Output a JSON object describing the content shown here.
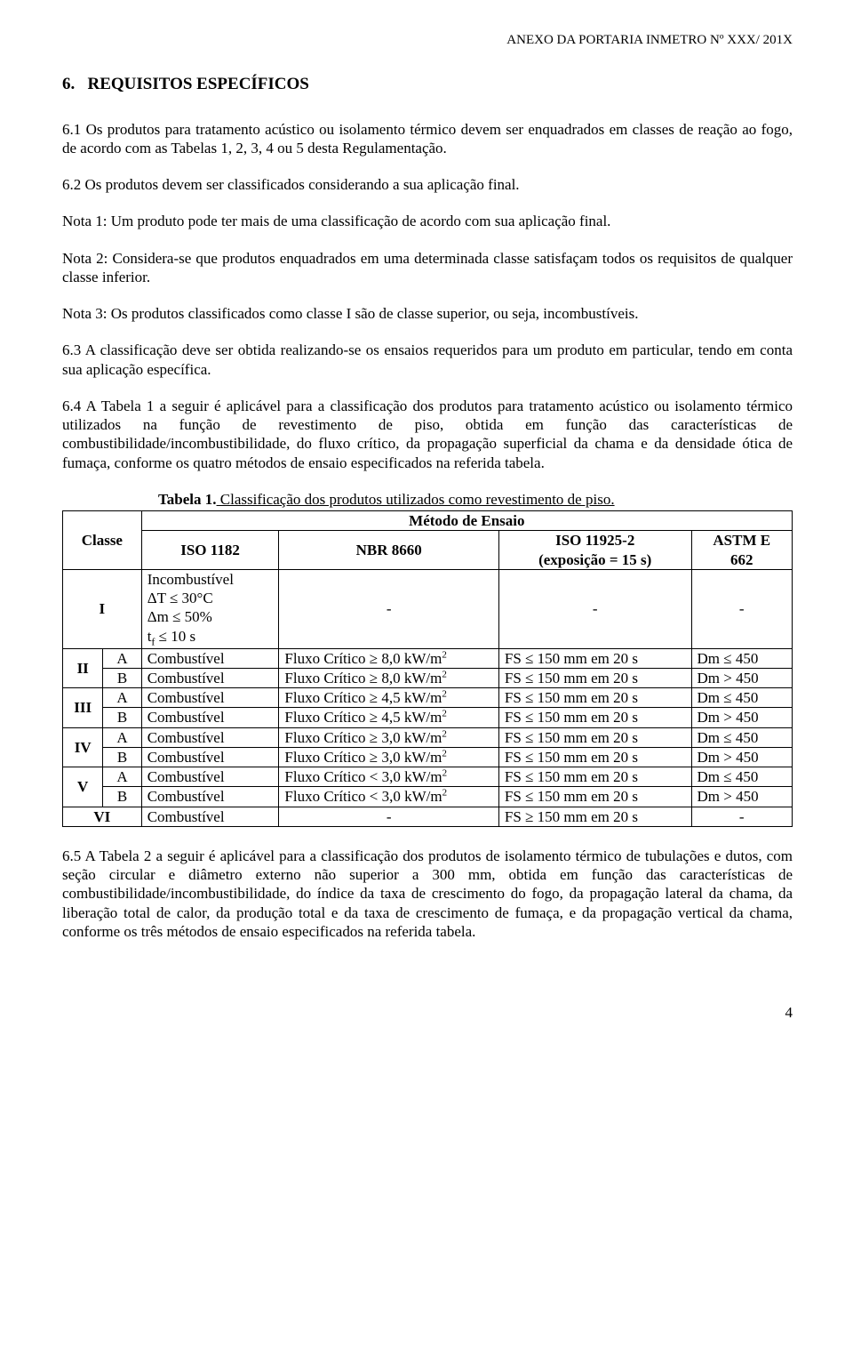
{
  "document": {
    "header": "ANEXO DA PORTARIA INMETRO Nº XXX/ 201X",
    "section_number": "6.",
    "section_title": "REQUISITOS ESPECÍFICOS",
    "paragraphs": {
      "p61": "6.1 Os produtos para tratamento acústico ou isolamento térmico devem ser enquadrados em classes de reação ao fogo, de acordo com as Tabelas 1, 2, 3, 4 ou 5 desta Regulamentação.",
      "p62": "6.2 Os produtos devem ser classificados considerando a sua aplicação final.",
      "nota1": "Nota 1: Um produto pode ter mais de uma classificação de acordo com sua aplicação final.",
      "nota2": "Nota 2: Considera-se que produtos enquadrados em uma determinada classe satisfaçam todos os requisitos de qualquer classe inferior.",
      "nota3": "Nota 3: Os produtos classificados como classe I são de classe superior, ou seja, incombustíveis.",
      "p63": "6.3 A classificação deve ser obtida realizando-se os ensaios requeridos para um produto em particular, tendo em conta sua aplicação específica.",
      "p64": "6.4 A Tabela 1 a seguir é aplicável para a classificação dos produtos para tratamento acústico ou isolamento térmico utilizados na função de revestimento de piso, obtida em função das características de combustibilidade/incombustibilidade, do fluxo crítico, da propagação superficial da chama e da densidade ótica de fumaça, conforme os quatro métodos de ensaio especificados na referida tabela.",
      "p65": "6.5 A Tabela 2 a seguir é aplicável para a classificação dos produtos de isolamento térmico de tubulações e dutos, com seção circular e diâmetro externo não superior a 300 mm, obtida em função das características de combustibilidade/incombustibilidade, do índice da taxa de crescimento do fogo, da propagação lateral da chama, da liberação total de calor, da produção total e da taxa de crescimento de fumaça, e da propagação vertical da chama, conforme os três métodos de ensaio especificados na referida tabela."
    },
    "table1": {
      "caption_bold": "Tabela 1.",
      "caption_rest": " Classificação dos produtos utilizados como revestimento de piso.",
      "header_method": "Método de Ensaio",
      "header_classe": "Classe",
      "cols": {
        "iso1182": "ISO 1182",
        "nbr8660": "NBR 8660",
        "iso11925_line1": "ISO 11925-2",
        "iso11925_line2": "(exposição = 15 s)",
        "astm_line1": "ASTM E",
        "astm_line2": "662"
      },
      "rowI": {
        "classe": "I",
        "iso_line1": "Incombustível",
        "iso_line2": "ΔT ≤ 30°C",
        "iso_line3": "Δm ≤ 50%",
        "iso_line4_pre": "t",
        "iso_line4_sub": "f",
        "iso_line4_rest": " ≤ 10 s",
        "nbr": "-",
        "iso2": "-",
        "astm": "-"
      },
      "rows": [
        {
          "grp": "II",
          "sub": "A",
          "iso": "Combustível",
          "nbr": "Fluxo Crítico ≥ 8,0 kW/m",
          "fs": "FS ≤ 150 mm em 20 s",
          "dm": "Dm ≤ 450"
        },
        {
          "grp": "II",
          "sub": "B",
          "iso": "Combustível",
          "nbr": "Fluxo Crítico ≥ 8,0 kW/m",
          "fs": "FS ≤ 150 mm em 20 s",
          "dm": "Dm > 450"
        },
        {
          "grp": "III",
          "sub": "A",
          "iso": "Combustível",
          "nbr": "Fluxo Crítico ≥ 4,5 kW/m",
          "fs": "FS ≤ 150 mm em 20 s",
          "dm": "Dm ≤ 450"
        },
        {
          "grp": "III",
          "sub": "B",
          "iso": "Combustível",
          "nbr": "Fluxo Crítico ≥ 4,5 kW/m",
          "fs": "FS ≤ 150 mm em 20 s",
          "dm": "Dm > 450"
        },
        {
          "grp": "IV",
          "sub": "A",
          "iso": "Combustível",
          "nbr": "Fluxo Crítico ≥ 3,0 kW/m",
          "fs": "FS ≤ 150 mm em 20 s",
          "dm": "Dm ≤ 450"
        },
        {
          "grp": "IV",
          "sub": "B",
          "iso": "Combustível",
          "nbr": "Fluxo Crítico ≥ 3,0 kW/m",
          "fs": "FS ≤ 150 mm em 20 s",
          "dm": "Dm > 450"
        },
        {
          "grp": "V",
          "sub": "A",
          "iso": "Combustível",
          "nbr": "Fluxo Crítico < 3,0 kW/m",
          "fs": "FS ≤ 150 mm em 20 s",
          "dm": "Dm ≤ 450"
        },
        {
          "grp": "V",
          "sub": "B",
          "iso": "Combustível",
          "nbr": "Fluxo Crítico < 3,0 kW/m",
          "fs": "FS ≤ 150 mm em 20 s",
          "dm": "Dm > 450"
        }
      ],
      "rowVI": {
        "classe": "VI",
        "iso": "Combustível",
        "nbr": "-",
        "fs": "FS ≥ 150 mm em 20 s",
        "dm": "-"
      }
    },
    "page_number": "4"
  }
}
